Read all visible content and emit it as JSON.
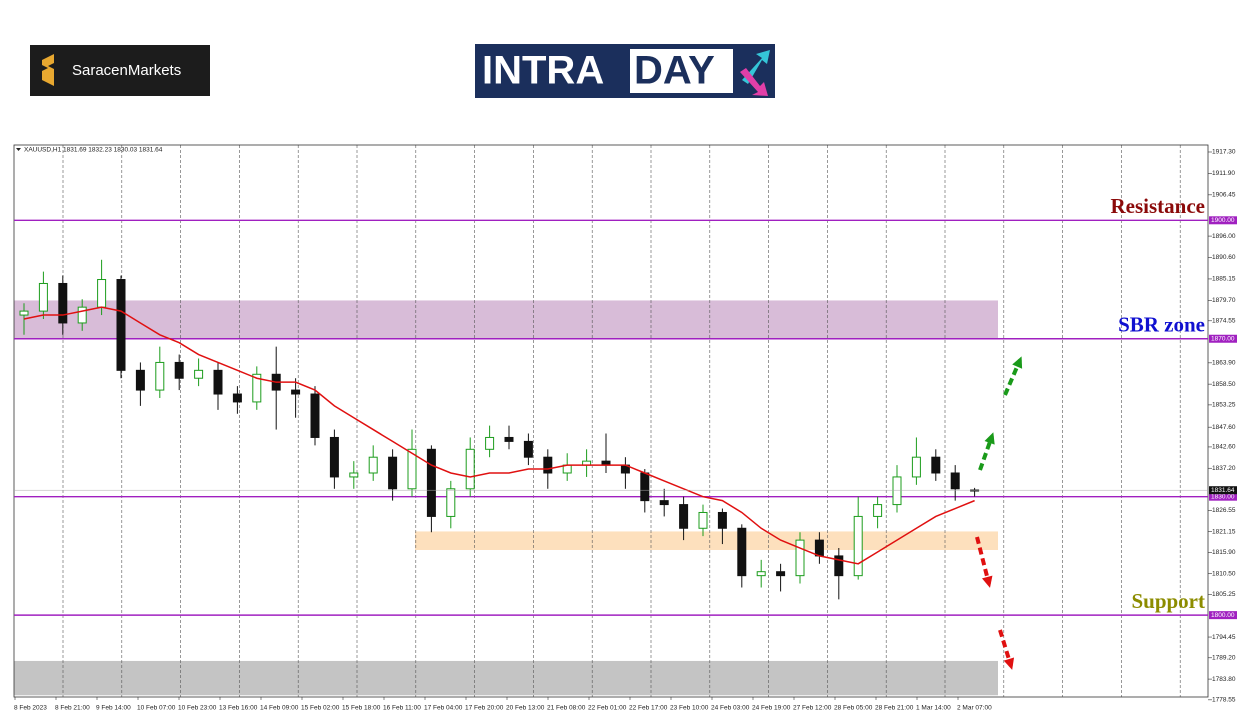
{
  "logos": {
    "broker": "SaracenMarkets",
    "brand_a": "INTRA",
    "brand_b": "DAY"
  },
  "chart_data": {
    "type": "candlestick",
    "symbol_info": "XAUUSD,H1 1831.69 1832.23 1830.03 1831.64",
    "ylim": [
      1778,
      1919.07
    ],
    "yticks": [
      {
        "value": 1917.3,
        "label": "1917.30"
      },
      {
        "value": 1911.9,
        "label": "1911.90"
      },
      {
        "value": 1906.45,
        "label": "1906.45"
      },
      {
        "value": 1896,
        "label": "1896.00"
      },
      {
        "value": 1890.6,
        "label": "1890.60"
      },
      {
        "value": 1885.15,
        "label": "1885.15"
      },
      {
        "value": 1879.7,
        "label": "1879.70"
      },
      {
        "value": 1874.55,
        "label": "1874.55"
      },
      {
        "value": 1863.9,
        "label": "1863.90"
      },
      {
        "value": 1858.5,
        "label": "1858.50"
      },
      {
        "value": 1853.25,
        "label": "1853.25"
      },
      {
        "value": 1847.6,
        "label": "1847.60"
      },
      {
        "value": 1842.6,
        "label": "1842.60"
      },
      {
        "value": 1837.2,
        "label": "1837.20"
      },
      {
        "value": 1826.55,
        "label": "1826.55"
      },
      {
        "value": 1821.15,
        "label": "1821.15"
      },
      {
        "value": 1815.9,
        "label": "1815.90"
      },
      {
        "value": 1810.5,
        "label": "1810.50"
      },
      {
        "value": 1805.25,
        "label": "1805.25"
      },
      {
        "value": 1794.45,
        "label": "1794.45"
      },
      {
        "value": 1789.2,
        "label": "1789.20"
      },
      {
        "value": 1783.8,
        "label": "1783.80"
      },
      {
        "value": 1778.55,
        "label": "1778.55"
      }
    ],
    "x_labels": [
      "8 Feb 2023",
      "8 Feb 21:00",
      "9 Feb 14:00",
      "10 Feb 07:00",
      "10 Feb 23:00",
      "13 Feb 16:00",
      "14 Feb 09:00",
      "15 Feb 02:00",
      "15 Feb 18:00",
      "16 Feb 11:00",
      "17 Feb 04:00",
      "17 Feb 20:00",
      "20 Feb 13:00",
      "21 Feb 08:00",
      "22 Feb 01:00",
      "22 Feb 17:00",
      "23 Feb 10:00",
      "24 Feb 03:00",
      "24 Feb 19:00",
      "27 Feb 12:00",
      "28 Feb 05:00",
      "28 Feb 21:00",
      "1 Mar 14:00",
      "2 Mar 07:00"
    ],
    "candles": {
      "up_color": "#1c9c1c",
      "down_color": "#111111",
      "open": [
        1876,
        1877,
        1884,
        1874,
        1878,
        1885,
        1862,
        1857,
        1864,
        1860,
        1862,
        1856,
        1854,
        1861,
        1857,
        1856,
        1845,
        1835,
        1836,
        1840,
        1832,
        1842,
        1825,
        1832,
        1842,
        1845,
        1844,
        1840,
        1836,
        1838,
        1839,
        1838,
        1836,
        1829,
        1828,
        1822,
        1826,
        1822,
        1810,
        1811,
        1810,
        1819,
        1815,
        1810,
        1825,
        1828,
        1835,
        1840,
        1836,
        1831.69
      ],
      "high": [
        1879,
        1887,
        1886,
        1880,
        1890,
        1886,
        1864,
        1868,
        1866,
        1865,
        1864,
        1858,
        1863,
        1868,
        1860,
        1858,
        1847,
        1839,
        1843,
        1842,
        1847,
        1843,
        1834,
        1845,
        1848,
        1848,
        1846,
        1842,
        1841,
        1842,
        1846,
        1840,
        1837,
        1832,
        1830,
        1828,
        1827,
        1823,
        1814,
        1813,
        1821,
        1821,
        1817,
        1830,
        1830,
        1838,
        1845,
        1842,
        1838,
        1832.23
      ],
      "low": [
        1871,
        1875,
        1871,
        1872,
        1876,
        1860,
        1853,
        1855,
        1857,
        1858,
        1852,
        1851,
        1852,
        1847,
        1850,
        1843,
        1832,
        1832,
        1834,
        1829,
        1830,
        1821,
        1822,
        1830,
        1840,
        1842,
        1838,
        1832,
        1834,
        1835,
        1836,
        1832,
        1826,
        1825,
        1819,
        1820,
        1818,
        1807,
        1807,
        1806,
        1808,
        1813,
        1804,
        1809,
        1822,
        1826,
        1833,
        1834,
        1829,
        1830.03
      ],
      "close": [
        1877,
        1884,
        1874,
        1878,
        1885,
        1862,
        1857,
        1864,
        1860,
        1862,
        1856,
        1854,
        1861,
        1857,
        1856,
        1845,
        1835,
        1836,
        1840,
        1832,
        1842,
        1825,
        1832,
        1842,
        1845,
        1844,
        1840,
        1836,
        1838,
        1839,
        1838,
        1836,
        1829,
        1828,
        1822,
        1826,
        1822,
        1810,
        1811,
        1810,
        1819,
        1815,
        1810,
        1825,
        1828,
        1835,
        1840,
        1836,
        1832,
        1831.64
      ]
    },
    "moving_average": {
      "color": "#e01010",
      "values": [
        1875,
        1876,
        1876,
        1877,
        1878,
        1877,
        1874,
        1871,
        1869,
        1866,
        1864,
        1862,
        1860,
        1859,
        1859,
        1857,
        1853,
        1850,
        1847,
        1844,
        1841,
        1838,
        1836,
        1835,
        1836,
        1836,
        1837,
        1837,
        1838,
        1838,
        1838,
        1838,
        1836,
        1834,
        1832,
        1830,
        1829,
        1826,
        1822,
        1819,
        1817,
        1815,
        1814,
        1813,
        1816,
        1819,
        1822,
        1825,
        1827,
        1829
      ]
    },
    "last_price": {
      "value": 1831.64,
      "label": "1831.64"
    },
    "levels": [
      {
        "value": 1900,
        "label": "1900.00",
        "name": "Resistance",
        "color": "#8b0a0a"
      },
      {
        "value": 1870,
        "label": "1870.00",
        "name": "SBR zone",
        "color": "#1010d0"
      },
      {
        "value": 1830,
        "label": "1830.00"
      },
      {
        "value": 1800,
        "label": "1800.00",
        "name": "Support",
        "color": "#8c8c00"
      }
    ],
    "level_color": "#a020c0",
    "zones": [
      {
        "from": 1870,
        "to": 1879.7,
        "color": "#d8bcd8"
      },
      {
        "from": 1816.5,
        "to": 1821.2,
        "color": "#fde0bd"
      },
      {
        "from": 1779.7,
        "to": 1788.4,
        "color": "#c4c4c4"
      }
    ]
  }
}
